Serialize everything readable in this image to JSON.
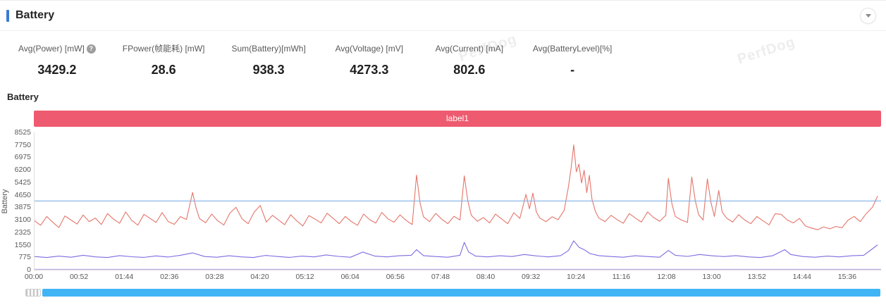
{
  "panel": {
    "title": "Battery"
  },
  "watermark": {
    "text": "PerfDog"
  },
  "stats": [
    {
      "key": "avg-power",
      "label": "Avg(Power) [mW]",
      "value": "3429.2",
      "help": true
    },
    {
      "key": "fpower",
      "label": "FPower(帧能耗) [mW]",
      "value": "28.6",
      "help": false
    },
    {
      "key": "sum-battery",
      "label": "Sum(Battery)[mWh]",
      "value": "938.3",
      "help": false
    },
    {
      "key": "avg-voltage",
      "label": "Avg(Voltage) [mV]",
      "value": "4273.3",
      "help": false
    },
    {
      "key": "avg-current",
      "label": "Avg(Current) [mA]",
      "value": "802.6",
      "help": false
    },
    {
      "key": "avg-battery-level",
      "label": "Avg(BatteryLevel)[%]",
      "value": "-",
      "help": false
    }
  ],
  "section_title": "Battery",
  "chart_data": {
    "type": "line",
    "title": "Battery",
    "banner_label": "label1",
    "ylabel": "Battery",
    "ylim": [
      0,
      8525
    ],
    "yticks": [
      0,
      775,
      1550,
      2325,
      3100,
      3875,
      4650,
      5425,
      6200,
      6975,
      7750,
      8525
    ],
    "xticks": [
      "00:00",
      "00:52",
      "01:44",
      "02:36",
      "03:28",
      "04:20",
      "05:12",
      "06:04",
      "06:56",
      "07:48",
      "08:40",
      "09:32",
      "10:24",
      "11:16",
      "12:08",
      "13:00",
      "13:52",
      "14:44",
      "15:36"
    ],
    "x_range_seconds": [
      0,
      975
    ],
    "grid": false,
    "legend": "none",
    "series": [
      {
        "key": "power",
        "name": "Power [mW]",
        "color": "#e4756a",
        "points": [
          [
            0,
            3050
          ],
          [
            7,
            2760
          ],
          [
            14,
            3310
          ],
          [
            21,
            2950
          ],
          [
            28,
            2620
          ],
          [
            35,
            3340
          ],
          [
            42,
            3090
          ],
          [
            49,
            2840
          ],
          [
            56,
            3400
          ],
          [
            63,
            2990
          ],
          [
            70,
            3210
          ],
          [
            77,
            2810
          ],
          [
            84,
            3490
          ],
          [
            91,
            3140
          ],
          [
            98,
            2890
          ],
          [
            105,
            3590
          ],
          [
            112,
            3060
          ],
          [
            119,
            2770
          ],
          [
            126,
            3440
          ],
          [
            133,
            3190
          ],
          [
            140,
            2940
          ],
          [
            147,
            3550
          ],
          [
            154,
            2990
          ],
          [
            161,
            2820
          ],
          [
            168,
            3300
          ],
          [
            175,
            3120
          ],
          [
            182,
            4800
          ],
          [
            186,
            3850
          ],
          [
            190,
            3180
          ],
          [
            197,
            2920
          ],
          [
            204,
            3460
          ],
          [
            211,
            3040
          ],
          [
            218,
            2780
          ],
          [
            225,
            3520
          ],
          [
            232,
            3880
          ],
          [
            239,
            3160
          ],
          [
            246,
            2860
          ],
          [
            253,
            3580
          ],
          [
            260,
            3990
          ],
          [
            267,
            2960
          ],
          [
            274,
            3380
          ],
          [
            281,
            3090
          ],
          [
            288,
            2800
          ],
          [
            295,
            3420
          ],
          [
            302,
            3040
          ],
          [
            309,
            2720
          ],
          [
            316,
            3360
          ],
          [
            323,
            3150
          ],
          [
            330,
            2910
          ],
          [
            337,
            3510
          ],
          [
            344,
            3190
          ],
          [
            351,
            2860
          ],
          [
            358,
            3310
          ],
          [
            365,
            2990
          ],
          [
            372,
            2760
          ],
          [
            379,
            3460
          ],
          [
            386,
            3110
          ],
          [
            393,
            2900
          ],
          [
            400,
            3560
          ],
          [
            407,
            3160
          ],
          [
            414,
            2950
          ],
          [
            421,
            3410
          ],
          [
            428,
            3060
          ],
          [
            435,
            2810
          ],
          [
            440,
            5880
          ],
          [
            444,
            4150
          ],
          [
            448,
            3290
          ],
          [
            455,
            2990
          ],
          [
            462,
            3500
          ],
          [
            469,
            3140
          ],
          [
            476,
            2860
          ],
          [
            483,
            3320
          ],
          [
            490,
            3090
          ],
          [
            495,
            5830
          ],
          [
            499,
            4280
          ],
          [
            503,
            3390
          ],
          [
            510,
            3010
          ],
          [
            517,
            3240
          ],
          [
            524,
            2910
          ],
          [
            531,
            3460
          ],
          [
            538,
            3150
          ],
          [
            545,
            2860
          ],
          [
            552,
            3540
          ],
          [
            559,
            3190
          ],
          [
            566,
            4680
          ],
          [
            570,
            3790
          ],
          [
            574,
            4760
          ],
          [
            578,
            3580
          ],
          [
            582,
            3210
          ],
          [
            589,
            2990
          ],
          [
            596,
            3290
          ],
          [
            603,
            3110
          ],
          [
            610,
            3680
          ],
          [
            615,
            5180
          ],
          [
            618,
            6320
          ],
          [
            621,
            7750
          ],
          [
            624,
            6080
          ],
          [
            627,
            6560
          ],
          [
            630,
            5390
          ],
          [
            633,
            6180
          ],
          [
            636,
            4790
          ],
          [
            639,
            5860
          ],
          [
            642,
            4380
          ],
          [
            646,
            3620
          ],
          [
            650,
            3210
          ],
          [
            657,
            2990
          ],
          [
            664,
            3380
          ],
          [
            671,
            3110
          ],
          [
            678,
            2890
          ],
          [
            685,
            3490
          ],
          [
            692,
            3210
          ],
          [
            699,
            2960
          ],
          [
            706,
            3590
          ],
          [
            713,
            3240
          ],
          [
            720,
            3010
          ],
          [
            727,
            3380
          ],
          [
            730,
            5680
          ],
          [
            734,
            4120
          ],
          [
            738,
            3310
          ],
          [
            745,
            3090
          ],
          [
            752,
            2940
          ],
          [
            757,
            5760
          ],
          [
            761,
            4280
          ],
          [
            765,
            3410
          ],
          [
            770,
            3090
          ],
          [
            775,
            5640
          ],
          [
            779,
            4190
          ],
          [
            783,
            3310
          ],
          [
            788,
            4920
          ],
          [
            792,
            3590
          ],
          [
            797,
            3210
          ],
          [
            804,
            2960
          ],
          [
            811,
            3420
          ],
          [
            818,
            3090
          ],
          [
            825,
            2860
          ],
          [
            832,
            3310
          ],
          [
            839,
            3040
          ],
          [
            846,
            2790
          ],
          [
            853,
            3480
          ],
          [
            860,
            3440
          ],
          [
            867,
            3090
          ],
          [
            874,
            2910
          ],
          [
            881,
            3190
          ],
          [
            888,
            2710
          ],
          [
            895,
            2590
          ],
          [
            902,
            2490
          ],
          [
            909,
            2660
          ],
          [
            916,
            2540
          ],
          [
            923,
            2690
          ],
          [
            930,
            2610
          ],
          [
            937,
            3090
          ],
          [
            944,
            3310
          ],
          [
            951,
            2990
          ],
          [
            958,
            3490
          ],
          [
            965,
            3880
          ],
          [
            971,
            4580
          ]
        ]
      },
      {
        "key": "current",
        "name": "Current [mA]",
        "color": "#7d6ce0",
        "points": [
          [
            0,
            820
          ],
          [
            14,
            760
          ],
          [
            28,
            850
          ],
          [
            42,
            780
          ],
          [
            56,
            900
          ],
          [
            70,
            800
          ],
          [
            84,
            760
          ],
          [
            98,
            880
          ],
          [
            112,
            810
          ],
          [
            126,
            770
          ],
          [
            140,
            860
          ],
          [
            154,
            790
          ],
          [
            168,
            900
          ],
          [
            182,
            1050
          ],
          [
            196,
            820
          ],
          [
            210,
            780
          ],
          [
            224,
            870
          ],
          [
            238,
            800
          ],
          [
            252,
            760
          ],
          [
            266,
            890
          ],
          [
            280,
            820
          ],
          [
            294,
            770
          ],
          [
            308,
            850
          ],
          [
            322,
            800
          ],
          [
            336,
            920
          ],
          [
            350,
            830
          ],
          [
            364,
            780
          ],
          [
            378,
            1100
          ],
          [
            392,
            850
          ],
          [
            406,
            800
          ],
          [
            420,
            870
          ],
          [
            434,
            900
          ],
          [
            440,
            1250
          ],
          [
            448,
            880
          ],
          [
            462,
            820
          ],
          [
            476,
            780
          ],
          [
            490,
            900
          ],
          [
            495,
            1700
          ],
          [
            500,
            1100
          ],
          [
            508,
            850
          ],
          [
            522,
            800
          ],
          [
            536,
            870
          ],
          [
            550,
            820
          ],
          [
            564,
            950
          ],
          [
            578,
            860
          ],
          [
            592,
            800
          ],
          [
            606,
            880
          ],
          [
            615,
            1200
          ],
          [
            621,
            1800
          ],
          [
            627,
            1400
          ],
          [
            633,
            1250
          ],
          [
            640,
            1000
          ],
          [
            650,
            880
          ],
          [
            664,
            820
          ],
          [
            678,
            780
          ],
          [
            692,
            870
          ],
          [
            706,
            820
          ],
          [
            720,
            780
          ],
          [
            730,
            1200
          ],
          [
            738,
            900
          ],
          [
            752,
            830
          ],
          [
            766,
            950
          ],
          [
            780,
            870
          ],
          [
            794,
            820
          ],
          [
            808,
            880
          ],
          [
            822,
            800
          ],
          [
            836,
            760
          ],
          [
            850,
            870
          ],
          [
            864,
            1250
          ],
          [
            871,
            950
          ],
          [
            885,
            820
          ],
          [
            899,
            780
          ],
          [
            913,
            850
          ],
          [
            927,
            800
          ],
          [
            941,
            870
          ],
          [
            955,
            900
          ],
          [
            965,
            1300
          ],
          [
            971,
            1550
          ]
        ]
      },
      {
        "key": "voltage",
        "name": "Voltage [mV]",
        "color": "#7fb0e8",
        "points": [
          [
            0,
            4273
          ],
          [
            975,
            4273
          ]
        ]
      },
      {
        "key": "fpower",
        "name": "FPower [mW]",
        "color": "#b9a7e0",
        "points": [
          [
            0,
            30
          ],
          [
            975,
            30
          ]
        ]
      }
    ]
  }
}
